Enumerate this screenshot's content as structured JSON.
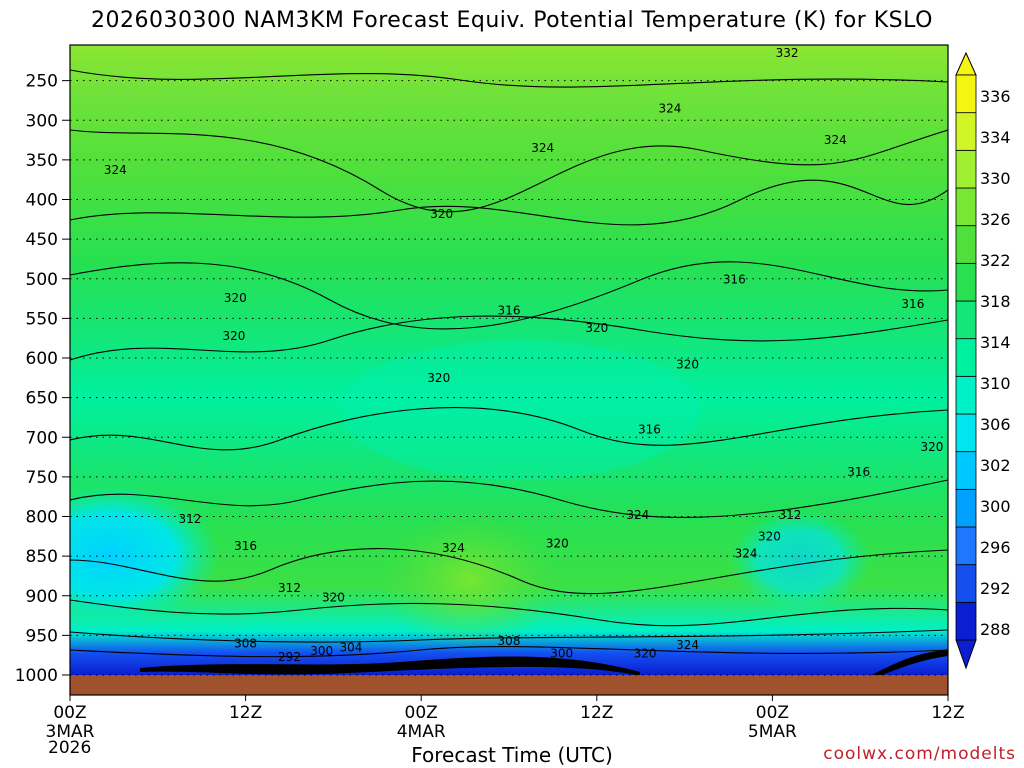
{
  "title": "2026030300 NAM3KM Forecast Equiv. Potential Temperature (K) for KSLO",
  "xlabel": "Forecast Time (UTC)",
  "credit": "coolwx.com/modelts",
  "colors": {
    "ground": "#a0522d",
    "credit": "#c0202a",
    "scale": [
      "#0a1ed2",
      "#1450f0",
      "#1e78ff",
      "#00a0ff",
      "#00c8ff",
      "#00e6f0",
      "#00f0c8",
      "#00f0a0",
      "#14e678",
      "#28e050",
      "#50e03c",
      "#78e632",
      "#a0f032",
      "#d2f528",
      "#f5f514"
    ]
  },
  "chart_data": {
    "type": "heatmap",
    "title": "2026030300 NAM3KM Forecast Equiv. Potential Temperature (K) for KSLO",
    "xlabel": "Forecast Time (UTC)",
    "ylabel": "",
    "x_range_hours": [
      0,
      60
    ],
    "x_ticks": [
      {
        "hour": 0,
        "lines": [
          "00Z",
          "3MAR",
          "2026"
        ]
      },
      {
        "hour": 12,
        "lines": [
          "12Z"
        ]
      },
      {
        "hour": 24,
        "lines": [
          "00Z",
          "4MAR"
        ]
      },
      {
        "hour": 36,
        "lines": [
          "12Z"
        ]
      },
      {
        "hour": 48,
        "lines": [
          "00Z",
          "5MAR"
        ]
      },
      {
        "hour": 60,
        "lines": [
          "12Z"
        ]
      }
    ],
    "y_range_hpa": [
      1000,
      200
    ],
    "y_ticks": [
      "250",
      "300",
      "350",
      "400",
      "450",
      "500",
      "550",
      "600",
      "650",
      "700",
      "750",
      "800",
      "850",
      "900",
      "950",
      "1000"
    ],
    "colorbar_labels": [
      "288",
      "292",
      "296",
      "300",
      "302",
      "306",
      "310",
      "314",
      "318",
      "322",
      "326",
      "330",
      "334",
      "336"
    ],
    "colorbar_placement": "right",
    "grid": true,
    "contour_labels": [
      {
        "value": "332",
        "hour": 49,
        "p": 215
      },
      {
        "value": "324",
        "hour": 41,
        "p": 285
      },
      {
        "value": "324",
        "hour": 32.3,
        "p": 335
      },
      {
        "value": "324",
        "hour": 52.3,
        "p": 325
      },
      {
        "value": "324",
        "hour": 3.1,
        "p": 363
      },
      {
        "value": "320",
        "hour": 25.4,
        "p": 418
      },
      {
        "value": "316",
        "hour": 45.4,
        "p": 501
      },
      {
        "value": "316",
        "hour": 30,
        "p": 540
      },
      {
        "value": "316",
        "hour": 57.6,
        "p": 532
      },
      {
        "value": "320",
        "hour": 11.3,
        "p": 524
      },
      {
        "value": "320",
        "hour": 11.2,
        "p": 572
      },
      {
        "value": "320",
        "hour": 36,
        "p": 562
      },
      {
        "value": "320",
        "hour": 42.2,
        "p": 608
      },
      {
        "value": "320",
        "hour": 25.2,
        "p": 625
      },
      {
        "value": "316",
        "hour": 39.6,
        "p": 690
      },
      {
        "value": "320",
        "hour": 58.9,
        "p": 712
      },
      {
        "value": "316",
        "hour": 53.9,
        "p": 744
      },
      {
        "value": "312",
        "hour": 8.2,
        "p": 803
      },
      {
        "value": "312",
        "hour": 49.2,
        "p": 798
      },
      {
        "value": "324",
        "hour": 38.8,
        "p": 798
      },
      {
        "value": "316",
        "hour": 12,
        "p": 837
      },
      {
        "value": "320",
        "hour": 33.3,
        "p": 834
      },
      {
        "value": "320",
        "hour": 47.8,
        "p": 825
      },
      {
        "value": "324",
        "hour": 26.2,
        "p": 840
      },
      {
        "value": "324",
        "hour": 46.2,
        "p": 847
      },
      {
        "value": "312",
        "hour": 15,
        "p": 890
      },
      {
        "value": "320",
        "hour": 18,
        "p": 902
      },
      {
        "value": "308",
        "hour": 12,
        "p": 960
      },
      {
        "value": "292",
        "hour": 15,
        "p": 977
      },
      {
        "value": "300",
        "hour": 17.2,
        "p": 970
      },
      {
        "value": "304",
        "hour": 19.2,
        "p": 965
      },
      {
        "value": "308",
        "hour": 30,
        "p": 957
      },
      {
        "value": "300",
        "hour": 33.6,
        "p": 973
      },
      {
        "value": "320",
        "hour": 39.3,
        "p": 973
      },
      {
        "value": "324",
        "hour": 42.2,
        "p": 962
      }
    ]
  }
}
